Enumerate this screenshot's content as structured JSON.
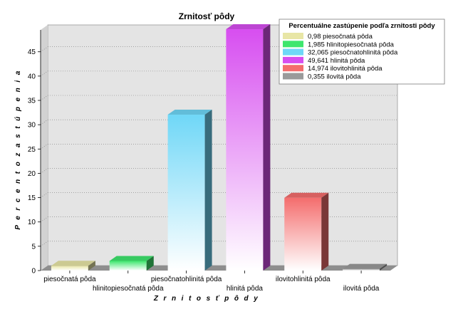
{
  "chart_data": {
    "type": "bar",
    "title": "Zrnitosť pôdy",
    "xlabel": "Z r n i t o s ť   p ô d y",
    "ylabel": "P e r c e n t o   z a s t ú p e n i a",
    "ylim": [
      0,
      49.5
    ],
    "yticks": [
      "0",
      "5",
      "10",
      "15",
      "20",
      "25",
      "30",
      "35",
      "40",
      "45"
    ],
    "grid": true,
    "categories": [
      "piesočnatá pôda",
      "hlinitopiesočnatá pôda",
      "piesočnatohlinitá pôda",
      "hlinitá pôda",
      "ilovitohlinitá pôda",
      "ilovitá pôda"
    ],
    "values": [
      0.98,
      1.985,
      32.065,
      49.641,
      14.974,
      0.355
    ],
    "colors": [
      "#e8e6a6",
      "#3ee66e",
      "#6fd7f7",
      "#d74ef0",
      "#f46d6d",
      "#9a9a9a"
    ],
    "legend": {
      "title": "Percentuálne zastúpenie podľa zrnitosti pôdy",
      "placement": "top-right",
      "items": [
        "0,98 piesočnatá pôda",
        "1,985 hlinitopiesočnatá pôda",
        "32,065 piesočnatohlinitá pôda",
        "49,641 hlinitá pôda",
        "14,974 ilovitohlinitá pôda",
        "0,355 ilovitá pôda"
      ]
    }
  }
}
